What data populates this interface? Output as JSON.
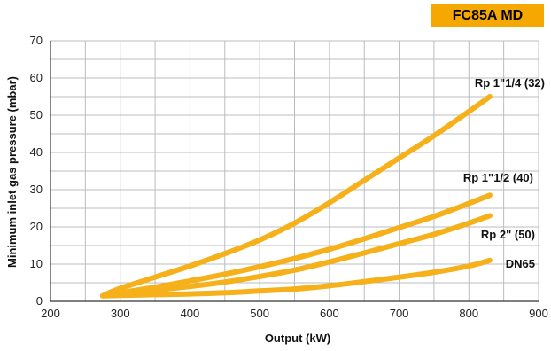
{
  "badge": {
    "text": "FC85A MD",
    "color": "#f5a800"
  },
  "chart_data": {
    "type": "line",
    "title": "",
    "xlabel": "Output (kW)",
    "ylabel": "Minimum inlet gas pressure (mbar)",
    "xlim": [
      200,
      900
    ],
    "ylim": [
      0,
      70
    ],
    "xticks": [
      200,
      300,
      400,
      500,
      600,
      700,
      800,
      900
    ],
    "yticks": [
      0,
      10,
      20,
      30,
      40,
      50,
      60,
      70
    ],
    "grid": true,
    "legend": "none",
    "line_color": "#f5b01a",
    "series": [
      {
        "name": "Rp 1\"1/4 (32)",
        "x": [
          275,
          300,
          350,
          400,
          450,
          500,
          550,
          600,
          650,
          700,
          750,
          800,
          830
        ],
        "y": [
          1.5,
          3.5,
          6.5,
          9.5,
          12.8,
          16.5,
          21,
          26.5,
          32.5,
          38.5,
          44.5,
          51,
          55
        ]
      },
      {
        "name": "Rp 1\"1/2 (40)",
        "x": [
          275,
          300,
          350,
          400,
          450,
          500,
          550,
          600,
          650,
          700,
          750,
          800,
          830
        ],
        "y": [
          1.5,
          2.3,
          3.8,
          5.5,
          7.3,
          9.3,
          11.5,
          14,
          16.8,
          19.8,
          22.8,
          26.3,
          28.5
        ]
      },
      {
        "name": "Rp 2\" (50)",
        "x": [
          275,
          300,
          350,
          400,
          450,
          500,
          550,
          600,
          650,
          700,
          750,
          800,
          830
        ],
        "y": [
          1.5,
          2,
          3,
          4,
          5.2,
          6.7,
          8.4,
          10.6,
          13,
          15.5,
          18,
          21,
          23
        ]
      },
      {
        "name": "DN65",
        "x": [
          275,
          300,
          350,
          400,
          450,
          500,
          550,
          600,
          650,
          700,
          750,
          800,
          830
        ],
        "y": [
          1.5,
          1.6,
          1.8,
          2,
          2.3,
          2.8,
          3.3,
          4.2,
          5.3,
          6.5,
          7.8,
          9.5,
          11
        ]
      }
    ]
  }
}
